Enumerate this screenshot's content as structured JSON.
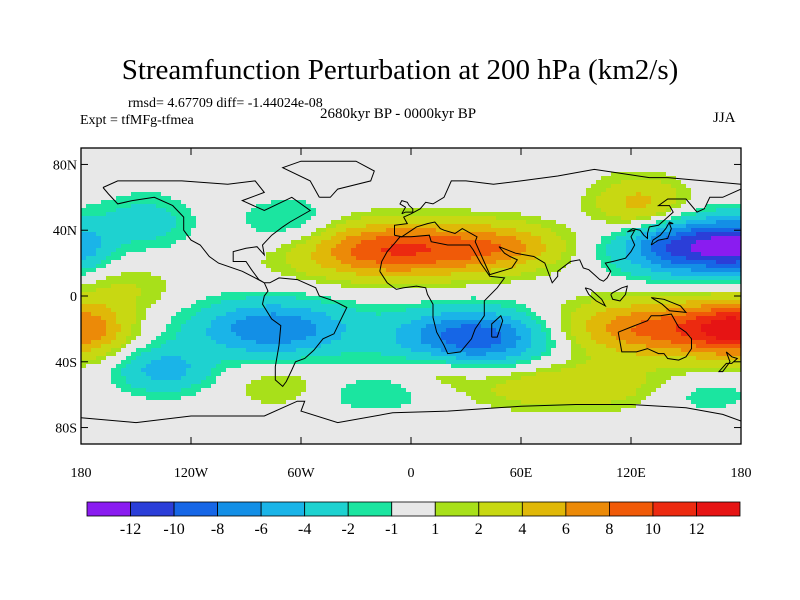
{
  "header": {
    "title": "Streamfunction Perturbation at 200 hPa (km2/s)",
    "stats": "rmsd= 4.67709 diff= -1.44024e-08",
    "expt": "Expt = tfMFg-tfmea",
    "period": "2680kyr BP - 0000kyr BP",
    "season": "JJA"
  },
  "chart_data": {
    "type": "heatmap",
    "title": "Streamfunction Perturbation at 200 hPa (km2/s)",
    "xlim": [
      -180,
      180
    ],
    "ylim": [
      -90,
      90
    ],
    "x_ticks": [
      {
        "value": -180,
        "label": "180"
      },
      {
        "value": -120,
        "label": "120W"
      },
      {
        "value": -60,
        "label": "60W"
      },
      {
        "value": 0,
        "label": "0"
      },
      {
        "value": 60,
        "label": "60E"
      },
      {
        "value": 120,
        "label": "120E"
      },
      {
        "value": 180,
        "label": "180"
      }
    ],
    "y_ticks": [
      {
        "value": 80,
        "label": "80N"
      },
      {
        "value": 40,
        "label": "40N"
      },
      {
        "value": 0,
        "label": "0"
      },
      {
        "value": -40,
        "label": "40S"
      },
      {
        "value": -80,
        "label": "80S"
      }
    ],
    "levels": [
      -12,
      -10,
      -8,
      -6,
      -4,
      -2,
      -1,
      1,
      2,
      4,
      6,
      8,
      10,
      12
    ],
    "level_labels": [
      "-12",
      "-10",
      "-8",
      "-6",
      "-4",
      "-2",
      "-1",
      "1",
      "2",
      "4",
      "6",
      "8",
      "10",
      "12"
    ],
    "colors": [
      "#8a1cf0",
      "#2b3ed8",
      "#1666e6",
      "#138fe6",
      "#1ab4e8",
      "#1ed2d0",
      "#1be5a0",
      "#e8e8e8",
      "#a8e01a",
      "#c8d812",
      "#e0b808",
      "#ec8a08",
      "#f05a08",
      "#ec2a10",
      "#e61414"
    ],
    "features": [
      {
        "lon": 155,
        "lat": 30,
        "amp": -12,
        "sx": 28,
        "sy": 12
      },
      {
        "lon": 125,
        "lat": 55,
        "amp": 5,
        "sx": 18,
        "sy": 12
      },
      {
        "lon": -10,
        "lat": 28,
        "amp": 10,
        "sx": 38,
        "sy": 12
      },
      {
        "lon": 50,
        "lat": 30,
        "amp": 5,
        "sx": 25,
        "sy": 10
      },
      {
        "lon": -65,
        "lat": 42,
        "amp": -3,
        "sx": 20,
        "sy": 12
      },
      {
        "lon": -145,
        "lat": 45,
        "amp": -3,
        "sx": 18,
        "sy": 12
      },
      {
        "lon": -180,
        "lat": 30,
        "amp": -5,
        "sx": 12,
        "sy": 12
      },
      {
        "lon": 180,
        "lat": 30,
        "amp": -5,
        "sx": 12,
        "sy": 12
      },
      {
        "lon": -155,
        "lat": 5,
        "amp": 2,
        "sx": 20,
        "sy": 10
      },
      {
        "lon": -75,
        "lat": -20,
        "amp": -8,
        "sx": 30,
        "sy": 12
      },
      {
        "lon": 35,
        "lat": -25,
        "amp": -10,
        "sx": 30,
        "sy": 12
      },
      {
        "lon": 140,
        "lat": -20,
        "amp": 9,
        "sx": 42,
        "sy": 12
      },
      {
        "lon": -180,
        "lat": -20,
        "amp": 8,
        "sx": 18,
        "sy": 12
      },
      {
        "lon": 180,
        "lat": -20,
        "amp": 8,
        "sx": 18,
        "sy": 12
      },
      {
        "lon": -135,
        "lat": -45,
        "amp": -5,
        "sx": 18,
        "sy": 10
      },
      {
        "lon": -70,
        "lat": -55,
        "amp": 2,
        "sx": 20,
        "sy": 10
      },
      {
        "lon": 85,
        "lat": -55,
        "amp": 4,
        "sx": 38,
        "sy": 10
      },
      {
        "lon": -20,
        "lat": -60,
        "amp": -2,
        "sx": 25,
        "sy": 8
      },
      {
        "lon": 15,
        "lat": -45,
        "amp": 2,
        "sx": 15,
        "sy": 8
      },
      {
        "lon": 160,
        "lat": -60,
        "amp": -2,
        "sx": 20,
        "sy": 8
      }
    ]
  }
}
